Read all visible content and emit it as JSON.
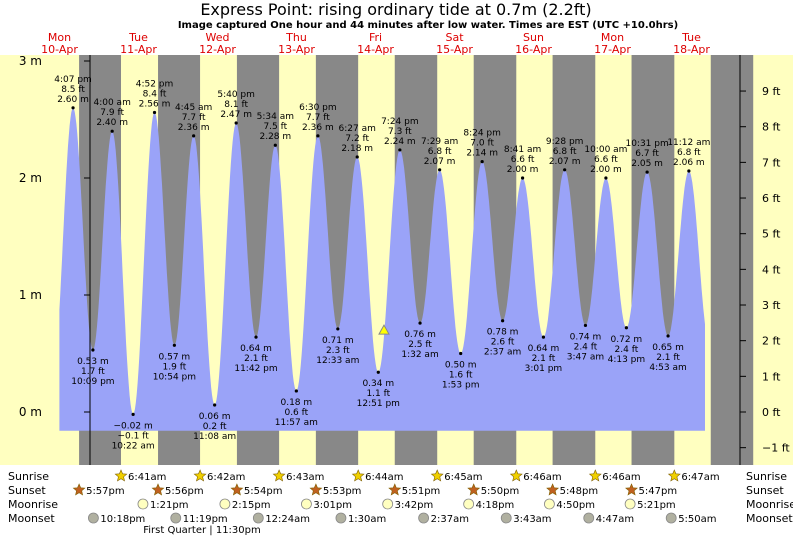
{
  "title": "Express Point: rising  ordinary tide at 0.7m (2.2ft)",
  "subtitle": "Image captured One hour and 44 minutes after low water. Times are EST (UTC +10.0hrs)",
  "colors": {
    "day": "#ffffc0",
    "night": "#888888",
    "tide": "#9aa3f8",
    "day_label": "#dd0000"
  },
  "chart_data": {
    "type": "area",
    "title": "Express Point: rising  ordinary tide at 0.7m (2.2ft)",
    "x_range": [
      "2025-04-10 00:00",
      "2025-04-18 12:00"
    ],
    "ylim_m": [
      -0.5,
      3.0
    ],
    "left_axis_ticks": [
      {
        "v": 3,
        "label": "3 m"
      },
      {
        "v": 2,
        "label": "2 m"
      },
      {
        "v": 1,
        "label": "1 m"
      },
      {
        "v": 0,
        "label": "0 m"
      }
    ],
    "right_axis_ticks": [
      {
        "ft": 9,
        "label": "9 ft"
      },
      {
        "ft": 8,
        "label": "8 ft"
      },
      {
        "ft": 7,
        "label": "7 ft"
      },
      {
        "ft": 6,
        "label": "6 ft"
      },
      {
        "ft": 5,
        "label": "5 ft"
      },
      {
        "ft": 4,
        "label": "4 ft"
      },
      {
        "ft": 3,
        "label": "3 ft"
      },
      {
        "ft": 2,
        "label": "2 ft"
      },
      {
        "ft": 1,
        "label": "1 ft"
      },
      {
        "ft": 0,
        "label": "0 ft"
      },
      {
        "ft": -1,
        "label": "−1 ft"
      }
    ],
    "days": [
      {
        "dow": "Mon",
        "date": "10-Apr",
        "day": 0
      },
      {
        "dow": "Tue",
        "date": "11-Apr",
        "day": 1
      },
      {
        "dow": "Wed",
        "date": "12-Apr",
        "day": 2
      },
      {
        "dow": "Thu",
        "date": "13-Apr",
        "day": 3
      },
      {
        "dow": "Fri",
        "date": "14-Apr",
        "day": 4
      },
      {
        "dow": "Sat",
        "date": "15-Apr",
        "day": 5
      },
      {
        "dow": "Sun",
        "date": "16-Apr",
        "day": 6
      },
      {
        "dow": "Mon",
        "date": "17-Apr",
        "day": 7
      },
      {
        "dow": "Tue",
        "date": "18-Apr",
        "day": 8
      }
    ],
    "tides": [
      {
        "day": 0,
        "time": "4:07 pm",
        "h": 2.6,
        "m": "2.60 m",
        "ft": "8.5 ft",
        "type": "high"
      },
      {
        "day": 0,
        "time": "10:09 pm",
        "h": 0.53,
        "m": "0.53 m",
        "ft": "1.7 ft",
        "type": "low"
      },
      {
        "day": 1,
        "time": "4:00 am",
        "h": 2.4,
        "m": "2.40 m",
        "ft": "7.9 ft",
        "type": "high"
      },
      {
        "day": 1,
        "time": "10:22 am",
        "h": -0.02,
        "m": "−0.02 m",
        "ft": "−0.1 ft",
        "type": "low"
      },
      {
        "day": 1,
        "time": "4:52 pm",
        "h": 2.56,
        "m": "2.56 m",
        "ft": "8.4 ft",
        "type": "high"
      },
      {
        "day": 1,
        "time": "10:54 pm",
        "h": 0.57,
        "m": "0.57 m",
        "ft": "1.9 ft",
        "type": "low"
      },
      {
        "day": 2,
        "time": "4:45 am",
        "h": 2.36,
        "m": "2.36 m",
        "ft": "7.7 ft",
        "type": "high"
      },
      {
        "day": 2,
        "time": "11:08 am",
        "h": 0.06,
        "m": "0.06 m",
        "ft": "0.2 ft",
        "type": "low"
      },
      {
        "day": 2,
        "time": "5:40 pm",
        "h": 2.47,
        "m": "2.47 m",
        "ft": "8.1 ft",
        "type": "high"
      },
      {
        "day": 2,
        "time": "11:42 pm",
        "h": 0.64,
        "m": "0.64 m",
        "ft": "2.1 ft",
        "type": "low"
      },
      {
        "day": 3,
        "time": "5:34 am",
        "h": 2.28,
        "m": "2.28 m",
        "ft": "7.5 ft",
        "type": "high"
      },
      {
        "day": 3,
        "time": "11:57 am",
        "h": 0.18,
        "m": "0.18 m",
        "ft": "0.6 ft",
        "type": "low"
      },
      {
        "day": 3,
        "time": "6:30 pm",
        "h": 2.36,
        "m": "2.36 m",
        "ft": "7.7 ft",
        "type": "high"
      },
      {
        "day": 4,
        "time": "12:33 am",
        "h": 0.71,
        "m": "0.71 m",
        "ft": "2.3 ft",
        "type": "low"
      },
      {
        "day": 4,
        "time": "6:27 am",
        "h": 2.18,
        "m": "2.18 m",
        "ft": "7.2 ft",
        "type": "high"
      },
      {
        "day": 4,
        "time": "12:51 pm",
        "h": 0.34,
        "m": "0.34 m",
        "ft": "1.1 ft",
        "type": "low"
      },
      {
        "day": 4,
        "time": "7:24 pm",
        "h": 2.24,
        "m": "2.24 m",
        "ft": "7.3 ft",
        "type": "high"
      },
      {
        "day": 5,
        "time": "1:32 am",
        "h": 0.76,
        "m": "0.76 m",
        "ft": "2.5 ft",
        "type": "low"
      },
      {
        "day": 5,
        "time": "7:29 am",
        "h": 2.07,
        "m": "2.07 m",
        "ft": "6.8 ft",
        "type": "high"
      },
      {
        "day": 5,
        "time": "1:53 pm",
        "h": 0.5,
        "m": "0.50 m",
        "ft": "1.6 ft",
        "type": "low"
      },
      {
        "day": 5,
        "time": "8:24 pm",
        "h": 2.14,
        "m": "2.14 m",
        "ft": "7.0 ft",
        "type": "high"
      },
      {
        "day": 6,
        "time": "2:37 am",
        "h": 0.78,
        "m": "0.78 m",
        "ft": "2.6 ft",
        "type": "low"
      },
      {
        "day": 6,
        "time": "8:41 am",
        "h": 2.0,
        "m": "2.00 m",
        "ft": "6.6 ft",
        "type": "high"
      },
      {
        "day": 6,
        "time": "3:01 pm",
        "h": 0.64,
        "m": "0.64 m",
        "ft": "2.1 ft",
        "type": "low"
      },
      {
        "day": 6,
        "time": "9:28 pm",
        "h": 2.07,
        "m": "2.07 m",
        "ft": "6.8 ft",
        "type": "high"
      },
      {
        "day": 7,
        "time": "3:47 am",
        "h": 0.74,
        "m": "0.74 m",
        "ft": "2.4 ft",
        "type": "low"
      },
      {
        "day": 7,
        "time": "10:00 am",
        "h": 2.0,
        "m": "2.00 m",
        "ft": "6.6 ft",
        "type": "high"
      },
      {
        "day": 7,
        "time": "4:13 pm",
        "h": 0.72,
        "m": "0.72 m",
        "ft": "2.4 ft",
        "type": "low"
      },
      {
        "day": 7,
        "time": "10:31 pm",
        "h": 2.05,
        "m": "2.05 m",
        "ft": "6.7 ft",
        "type": "high"
      },
      {
        "day": 8,
        "time": "4:53 am",
        "h": 0.65,
        "m": "0.65 m",
        "ft": "2.1 ft",
        "type": "low"
      },
      {
        "day": 8,
        "time": "11:12 am",
        "h": 2.06,
        "m": "2.06 m",
        "ft": "6.8 ft",
        "type": "high"
      }
    ],
    "current": {
      "day": 4,
      "time": "2:35 pm",
      "h": 0.7
    }
  },
  "legend_rows": {
    "sunrise": "Sunrise",
    "sunset": "Sunset",
    "moonrise": "Moonrise",
    "moonset": "Moonset"
  },
  "sunrise": [
    {
      "day": 1,
      "time": "6:41am"
    },
    {
      "day": 2,
      "time": "6:42am"
    },
    {
      "day": 3,
      "time": "6:43am"
    },
    {
      "day": 4,
      "time": "6:44am"
    },
    {
      "day": 5,
      "time": "6:45am"
    },
    {
      "day": 6,
      "time": "6:46am"
    },
    {
      "day": 7,
      "time": "6:46am"
    },
    {
      "day": 8,
      "time": "6:47am"
    }
  ],
  "sunset": [
    {
      "day": 0,
      "time": "5:57pm"
    },
    {
      "day": 1,
      "time": "5:56pm"
    },
    {
      "day": 2,
      "time": "5:54pm"
    },
    {
      "day": 3,
      "time": "5:53pm"
    },
    {
      "day": 4,
      "time": "5:51pm"
    },
    {
      "day": 5,
      "time": "5:50pm"
    },
    {
      "day": 6,
      "time": "5:48pm"
    },
    {
      "day": 7,
      "time": "5:47pm"
    }
  ],
  "moonrise": [
    {
      "day": 1,
      "time": "1:21pm"
    },
    {
      "day": 2,
      "time": "2:15pm"
    },
    {
      "day": 3,
      "time": "3:01pm"
    },
    {
      "day": 4,
      "time": "3:42pm"
    },
    {
      "day": 5,
      "time": "4:18pm"
    },
    {
      "day": 6,
      "time": "4:50pm"
    },
    {
      "day": 7,
      "time": "5:21pm"
    }
  ],
  "moonset": [
    {
      "day": 0,
      "time": "10:18pm"
    },
    {
      "day": 1,
      "time": "11:19pm"
    },
    {
      "day": 3,
      "time": "12:24am"
    },
    {
      "day": 4,
      "time": "1:30am"
    },
    {
      "day": 5,
      "time": "2:37am"
    },
    {
      "day": 6,
      "time": "3:43am"
    },
    {
      "day": 7,
      "time": "4:47am"
    },
    {
      "day": 8,
      "time": "5:50am"
    }
  ],
  "moon_phase": "First Quarter | 11:30pm"
}
